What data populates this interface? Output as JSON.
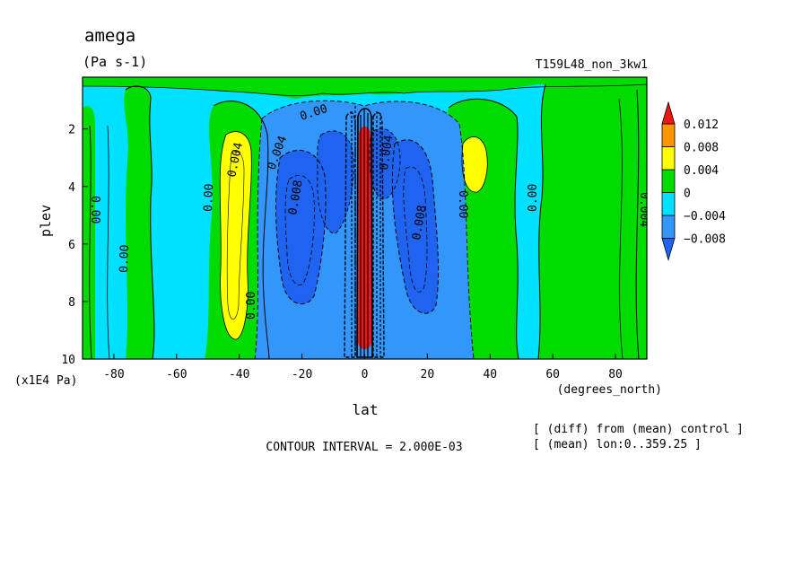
{
  "chart_data": {
    "type": "heatmap",
    "title": "amega",
    "units": "(Pa s-1)",
    "run_label": "T159L48_non_3kw1",
    "xlabel": "lat",
    "x_units": "(degrees_north)",
    "ylabel": "plev",
    "y_units": "(x1E4 Pa)",
    "x_ticks": [
      "-80",
      "-60",
      "-40",
      "-20",
      "0",
      "20",
      "40",
      "60",
      "80"
    ],
    "x_tick_values": [
      -80,
      -60,
      -40,
      -20,
      0,
      20,
      40,
      60,
      80
    ],
    "y_ticks": [
      "2",
      "4",
      "6",
      "8",
      "10"
    ],
    "y_tick_values": [
      2,
      4,
      6,
      8,
      10
    ],
    "xlim": [
      -90,
      90
    ],
    "ylim": [
      10,
      0.2
    ],
    "contour_interval": "CONTOUR INTERVAL = 2.000E-03",
    "notes": [
      "[ (diff) from (mean) control ]",
      "[ (mean) lon:0..359.25 ]"
    ],
    "colorbar": {
      "labels": [
        "0.012",
        "0.008",
        "0.004",
        "0",
        "−0.004",
        "−0.008"
      ],
      "levels": [
        -0.012,
        -0.008,
        -0.004,
        0,
        0.004,
        0.008,
        0.012
      ],
      "colors": [
        "#1e64f0",
        "#3296fa",
        "#00e1ff",
        "#00dc00",
        "#ffff00",
        "#ff9600",
        "#f01414"
      ]
    },
    "contour_labels": [
      "0.00",
      "0.004",
      "0.00",
      "0.004",
      "0.008",
      "0.004",
      "0.008",
      "0.00",
      "0.00",
      "0.00",
      "0.00",
      "0.00",
      "0.004"
    ],
    "features": [
      {
        "name": "equatorial positive core",
        "lat": [
          -3,
          3
        ],
        "plev": [
          1.5,
          10
        ],
        "value": 0.012
      },
      {
        "name": "southern descent band",
        "lat": [
          -45,
          -38
        ],
        "plev": [
          2.3,
          9.3
        ],
        "value": 0.004
      },
      {
        "name": "northern descent band",
        "lat": [
          31,
          37
        ],
        "plev": [
          2.5,
          5
        ],
        "value": 0.004
      },
      {
        "name": "southern ascent region",
        "lat": [
          -28,
          -4
        ],
        "plev": [
          2,
          10
        ],
        "value": -0.008
      },
      {
        "name": "northern ascent region",
        "lat": [
          4,
          32
        ],
        "plev": [
          2,
          10
        ],
        "value": -0.008
      }
    ]
  }
}
